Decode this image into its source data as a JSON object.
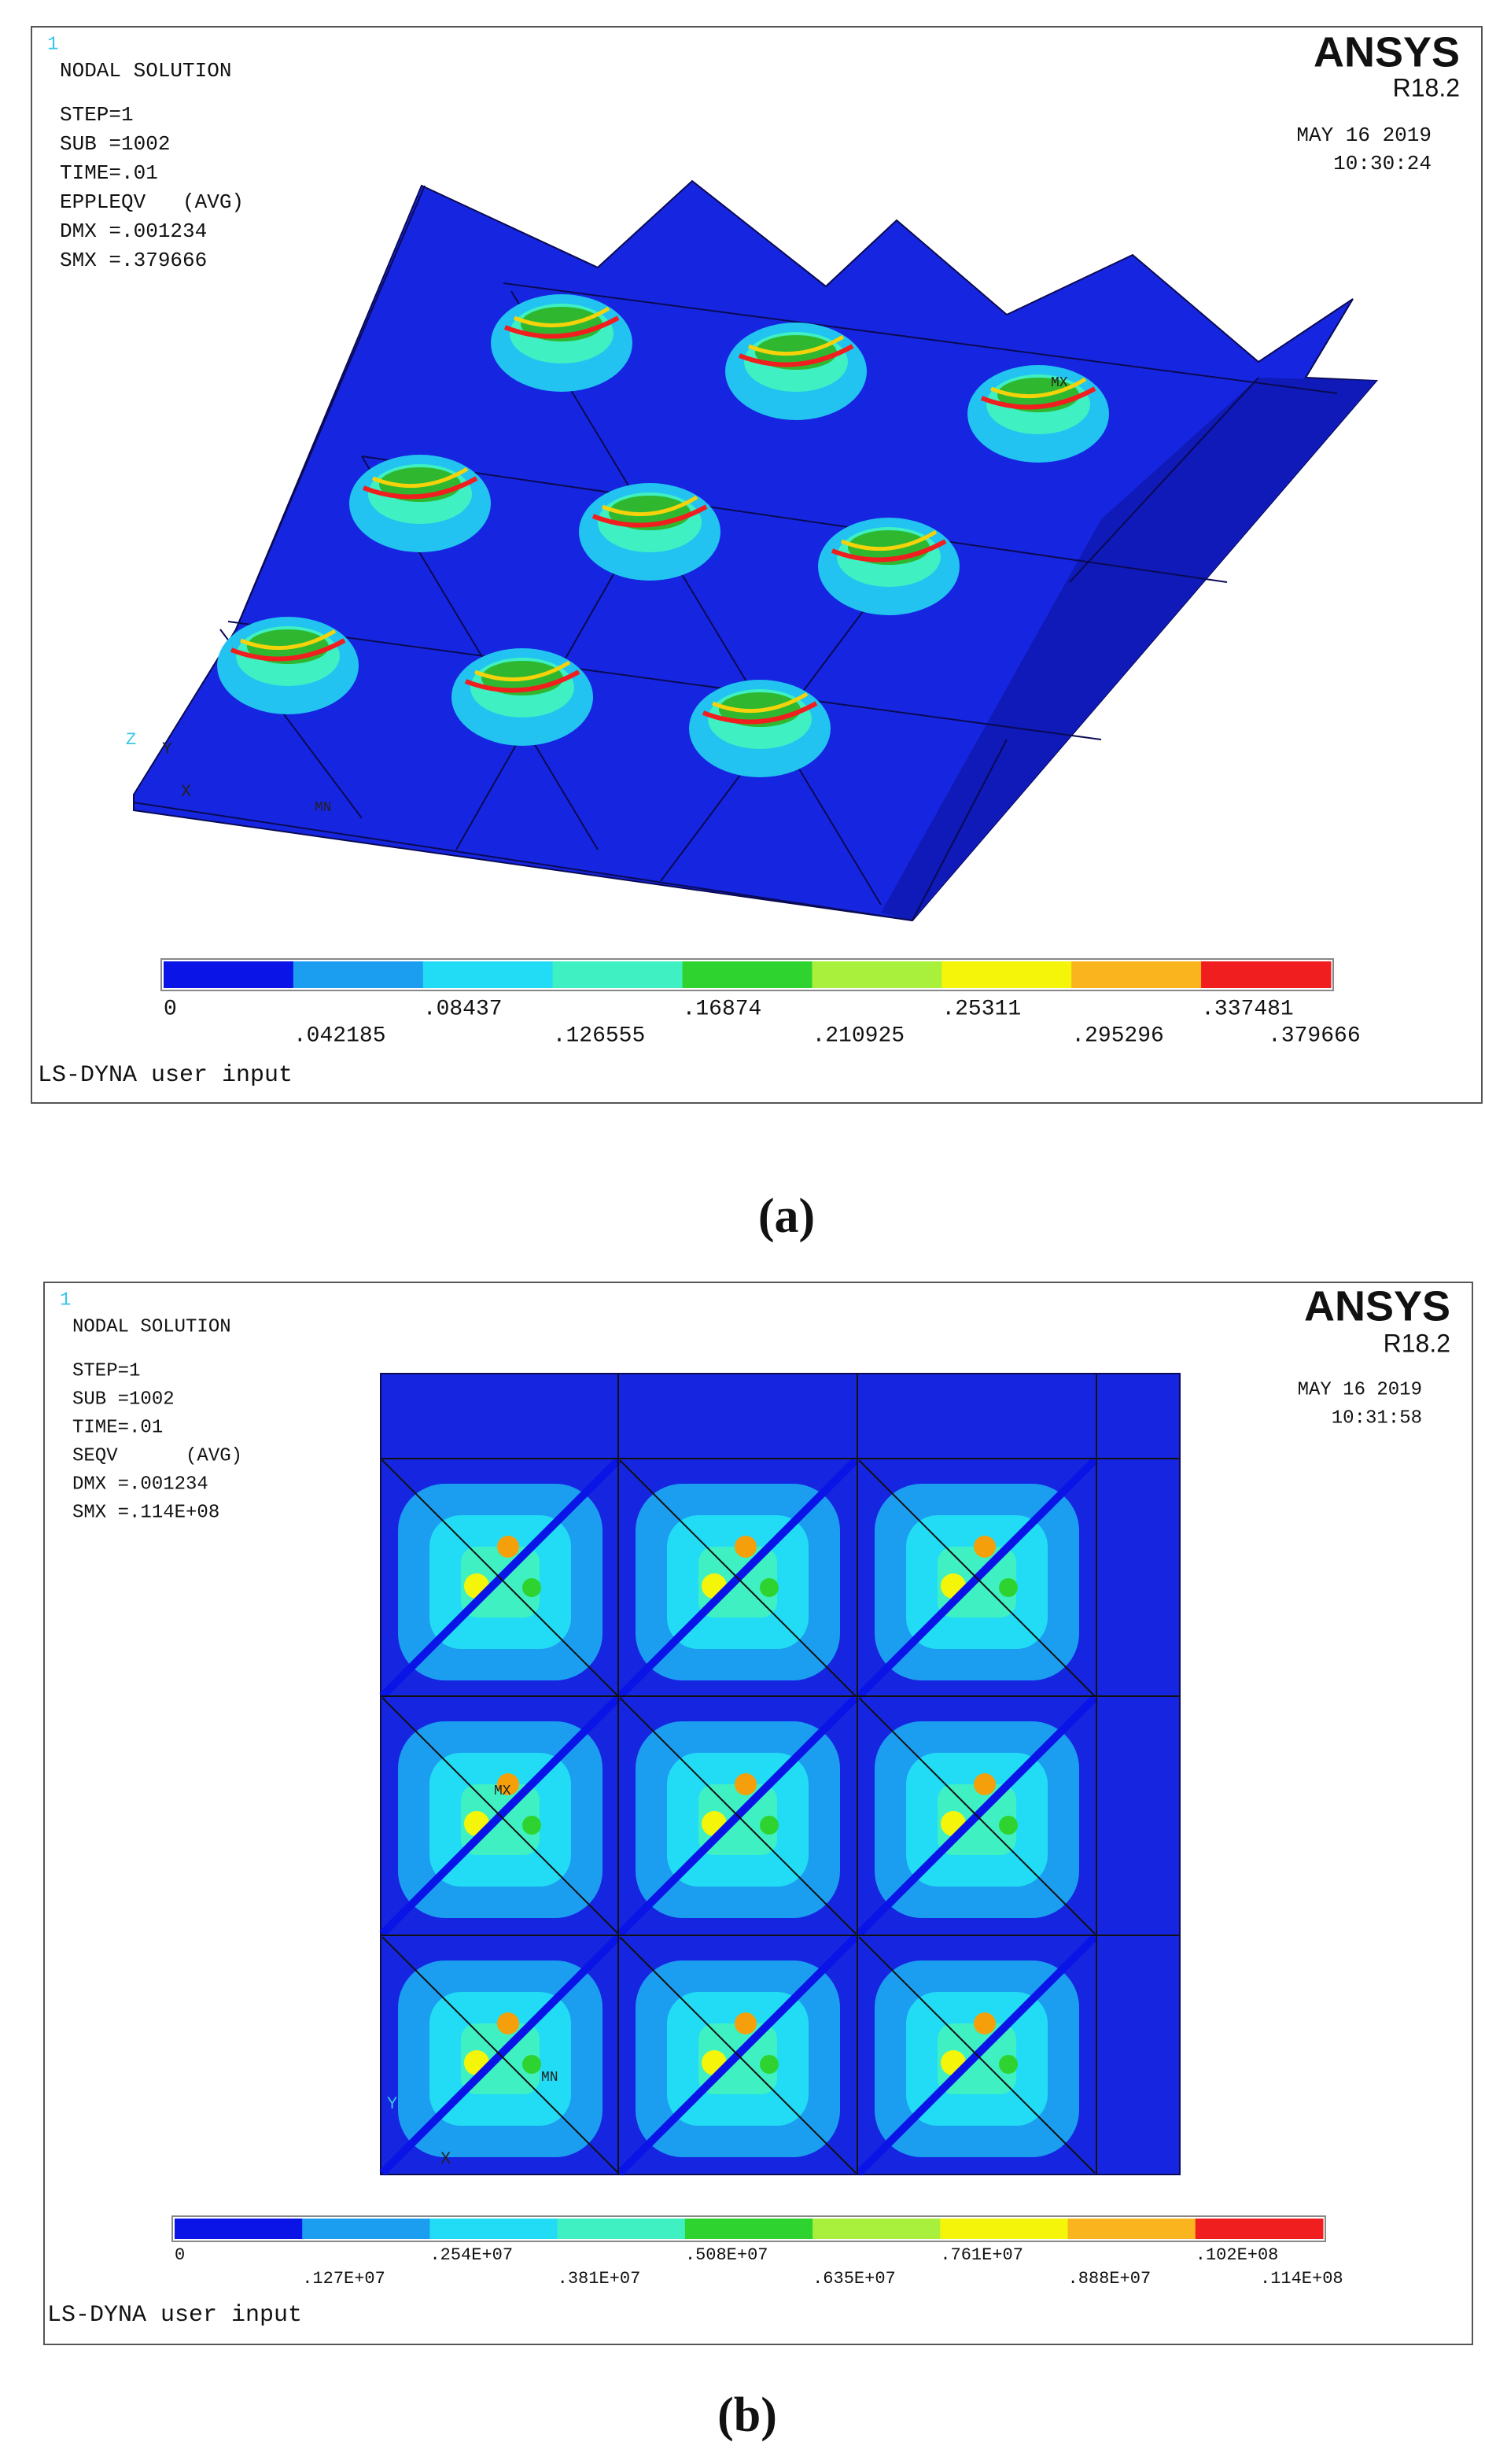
{
  "panels": [
    {
      "id": "1",
      "heading": "NODAL SOLUTION",
      "info": [
        "STEP=1",
        "SUB =1002",
        "TIME=.01",
        "EPPLEQV   (AVG)",
        "DMX =.001234",
        "SMX =.379666"
      ],
      "brand": "ANSYS",
      "version": "R18.2",
      "date": "MAY 16 2019",
      "time": "10:30:24",
      "markers": [
        "MX",
        "MN"
      ],
      "axes": [
        "Z",
        "Y",
        "X"
      ],
      "legend": {
        "colors": [
          "#0a14e6",
          "#1c9ef0",
          "#22dcf5",
          "#3ff0c3",
          "#2fd32f",
          "#a8f03c",
          "#f5f50a",
          "#fab41e",
          "#f01e1e"
        ],
        "labels": [
          "0",
          ".042185",
          ".08437",
          ".126555",
          ".16874",
          ".210925",
          ".25311",
          ".295296",
          ".337481",
          ".379666"
        ]
      },
      "footer": "LS-DYNA user input",
      "caption": "(a)"
    },
    {
      "id": "1",
      "heading": "NODAL SOLUTION",
      "info": [
        "STEP=1",
        "SUB =1002",
        "TIME=.01",
        "SEQV      (AVG)",
        "DMX =.001234",
        "SMX =.114E+08"
      ],
      "brand": "ANSYS",
      "version": "R18.2",
      "date": "MAY 16 2019",
      "time": "10:31:58",
      "markers": [
        "MX",
        "MN"
      ],
      "axes": [
        "Y",
        "X"
      ],
      "legend": {
        "colors": [
          "#0a14e6",
          "#1c9ef0",
          "#22dcf5",
          "#3ff0c3",
          "#2fd32f",
          "#a8f03c",
          "#f5f50a",
          "#fab41e",
          "#f01e1e"
        ],
        "labels": [
          "0",
          ".127E+07",
          ".254E+07",
          ".381E+07",
          ".508E+07",
          ".635E+07",
          ".761E+07",
          ".888E+07",
          ".102E+08",
          ".114E+08"
        ]
      },
      "footer": "LS-DYNA user input",
      "caption": "(b)"
    }
  ]
}
